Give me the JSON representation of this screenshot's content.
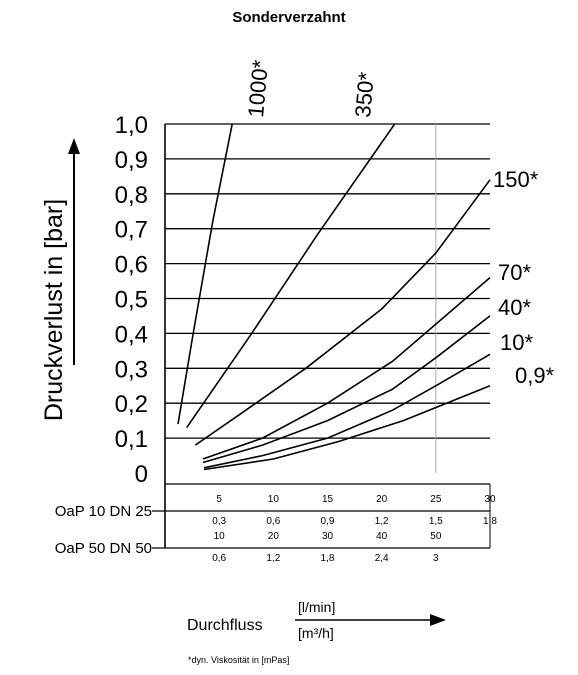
{
  "chart_data": {
    "type": "line",
    "title": "Sonderverzahnt",
    "ylabel": "Druckverlust in [bar]",
    "xlabel": "Durchfluss",
    "x_units": [
      "[l/min]",
      "[m³/h]"
    ],
    "ylim": [
      0,
      1.0
    ],
    "y_ticks": [
      "0",
      "0,1",
      "0,2",
      "0,3",
      "0,4",
      "0,5",
      "0,6",
      "0,7",
      "0,8",
      "0,9",
      "1,0"
    ],
    "x_scales": [
      {
        "name": "OaP 10 DN 25",
        "lpm": [
          "5",
          "10",
          "15",
          "20",
          "25",
          "30"
        ],
        "m3h": [
          "0,3",
          "0,6",
          "0,9",
          "1,2",
          "1,5",
          "1,8"
        ]
      },
      {
        "name": "OaP 50 DN 50",
        "lpm": [
          "10",
          "20",
          "30",
          "40",
          "50"
        ],
        "m3h": [
          "0,6",
          "1,2",
          "1,8",
          "2,4",
          "3"
        ]
      }
    ],
    "series": [
      {
        "name": "1000*",
        "x": [
          1.2,
          2.6,
          4.4,
          6.2
        ],
        "y": [
          0.14,
          0.4,
          0.72,
          1.0
        ]
      },
      {
        "name": "350*",
        "x": [
          2.0,
          8.0,
          14.0,
          21.2
        ],
        "y": [
          0.13,
          0.4,
          0.68,
          1.0
        ]
      },
      {
        "name": "150*",
        "x": [
          2.8,
          7.0,
          13.0,
          20.0,
          25.0,
          30.0
        ],
        "y": [
          0.08,
          0.17,
          0.3,
          0.47,
          0.63,
          0.84
        ]
      },
      {
        "name": "70*",
        "x": [
          3.5,
          9.0,
          15.0,
          21.0,
          30.0
        ],
        "y": [
          0.04,
          0.1,
          0.2,
          0.32,
          0.56
        ]
      },
      {
        "name": "40*",
        "x": [
          3.5,
          9.0,
          15.0,
          21.0,
          25.0,
          30.0
        ],
        "y": [
          0.03,
          0.08,
          0.15,
          0.24,
          0.33,
          0.45
        ]
      },
      {
        "name": "10*",
        "x": [
          3.6,
          9.0,
          15.0,
          21.0,
          25.0,
          30.0
        ],
        "y": [
          0.015,
          0.05,
          0.1,
          0.18,
          0.25,
          0.34
        ]
      },
      {
        "name": "0,9*",
        "x": [
          3.6,
          10.0,
          16.0,
          22.0,
          30.0
        ],
        "y": [
          0.01,
          0.04,
          0.09,
          0.15,
          0.25
        ]
      }
    ],
    "footnote": "*dyn. Viskosität in [mPas]",
    "grid": true
  }
}
